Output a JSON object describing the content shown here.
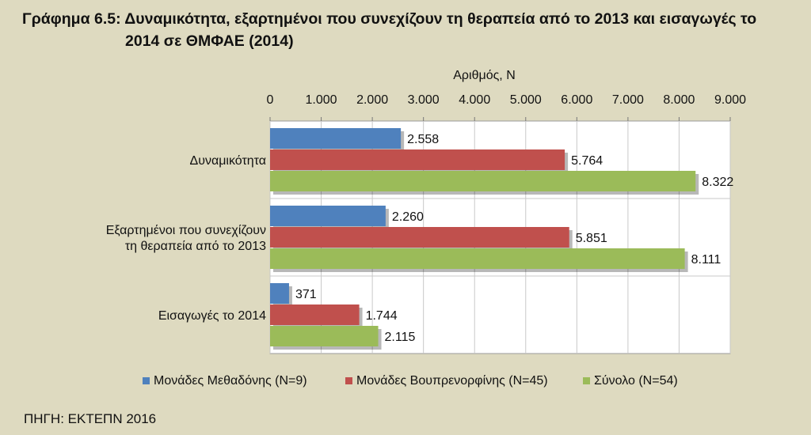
{
  "title_line1": "Γράφημα 6.5: Δυναμικότητα, εξαρτημένοι που συνεχίζουν τη θεραπεία από το 2013 και εισαγωγές το",
  "title_line2": "2014 σε ΘΜΦΑΕ (2014)",
  "source": "ΠΗΓΗ: ΕΚΤΕΠΝ 2016",
  "chart_data": {
    "type": "bar",
    "orientation": "horizontal",
    "xlabel": "Αριθμός, N",
    "xlim": [
      0,
      9000
    ],
    "tick_values": [
      0,
      1000,
      2000,
      3000,
      4000,
      5000,
      6000,
      7000,
      8000,
      9000
    ],
    "tick_labels": [
      "0",
      "1.000",
      "2.000",
      "3.000",
      "4.000",
      "5.000",
      "6.000",
      "7.000",
      "8.000",
      "9.000"
    ],
    "grid": true,
    "legend_position": "bottom",
    "categories": [
      [
        "Δυναμικότητα"
      ],
      [
        "Εξαρτημένοι που συνεχίζουν",
        "τη θεραπεία από το 2013"
      ],
      [
        "Εισαγωγές το 2014"
      ]
    ],
    "series": [
      {
        "name": "Μονάδες Μεθαδόνης (N=9)",
        "color": "#4f81bd",
        "values": [
          2558,
          2260,
          371
        ],
        "labels": [
          "2.558",
          "2.260",
          "371"
        ]
      },
      {
        "name": "Μονάδες Βουπρενορφίνης (N=45)",
        "color": "#c0504d",
        "values": [
          5764,
          5851,
          1744
        ],
        "labels": [
          "5.764",
          "5.851",
          "1.744"
        ]
      },
      {
        "name": "Σύνολο (N=54)",
        "color": "#9bbb59",
        "values": [
          8322,
          8111,
          2115
        ],
        "labels": [
          "8.322",
          "8.111",
          "2.115"
        ]
      }
    ]
  }
}
